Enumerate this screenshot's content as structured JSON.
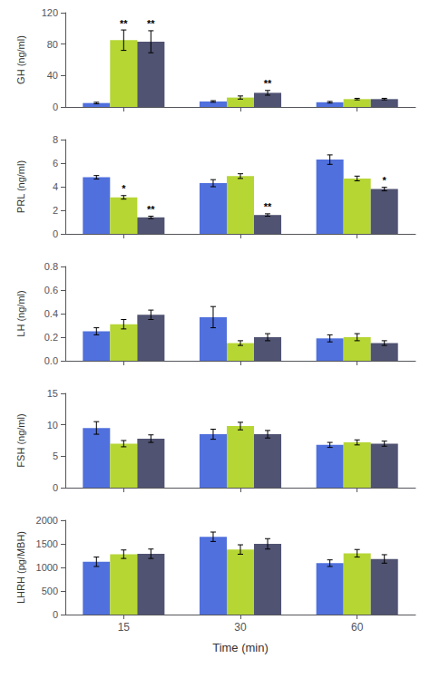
{
  "chart_data": [
    {
      "type": "bar",
      "ylabel": "GH (ng/ml)",
      "categories": [
        null,
        null,
        null
      ],
      "ylim": [
        0,
        120
      ],
      "yticks": [
        0,
        40,
        80,
        120
      ],
      "grid": false,
      "series": [
        {
          "values": [
            5,
            7,
            6
          ],
          "errors": [
            1,
            1,
            1
          ]
        },
        {
          "values": [
            85,
            12,
            10
          ],
          "errors": [
            13,
            2,
            1
          ],
          "annotations": [
            "**",
            null,
            null
          ]
        },
        {
          "values": [
            83,
            18,
            10
          ],
          "errors": [
            14,
            3,
            1
          ],
          "annotations": [
            "**",
            "**",
            null
          ]
        }
      ]
    },
    {
      "type": "bar",
      "ylabel": "PRL (ng/ml)",
      "categories": [
        null,
        null,
        null
      ],
      "ylim": [
        0,
        8
      ],
      "yticks": [
        0,
        2,
        4,
        6,
        8
      ],
      "grid": false,
      "series": [
        {
          "values": [
            4.8,
            4.3,
            6.3
          ],
          "errors": [
            0.15,
            0.3,
            0.4
          ]
        },
        {
          "values": [
            3.1,
            4.9,
            4.7
          ],
          "errors": [
            0.15,
            0.2,
            0.2
          ],
          "annotations": [
            "*",
            null,
            null
          ]
        },
        {
          "values": [
            1.4,
            1.6,
            3.8
          ],
          "errors": [
            0.1,
            0.1,
            0.15
          ],
          "annotations": [
            "**",
            "**",
            "*"
          ]
        }
      ]
    },
    {
      "type": "bar",
      "ylabel": "LH (ng/ml)",
      "categories": [
        null,
        null,
        null
      ],
      "ylim": [
        0.0,
        0.8
      ],
      "yticks": [
        {
          "value": 0,
          "label": "0.0"
        },
        0.2,
        0.4,
        0.6,
        0.8
      ],
      "grid": false,
      "series": [
        {
          "values": [
            0.25,
            0.37,
            0.19
          ],
          "errors": [
            0.03,
            0.09,
            0.03
          ]
        },
        {
          "values": [
            0.31,
            0.15,
            0.2
          ],
          "errors": [
            0.04,
            0.02,
            0.03
          ]
        },
        {
          "values": [
            0.39,
            0.2,
            0.15
          ],
          "errors": [
            0.04,
            0.03,
            0.02
          ]
        }
      ]
    },
    {
      "type": "bar",
      "ylabel": "FSH (ng/ml)",
      "categories": [
        null,
        null,
        null
      ],
      "ylim": [
        0,
        15
      ],
      "yticks": [
        0,
        5,
        10,
        15
      ],
      "grid": false,
      "series": [
        {
          "values": [
            9.5,
            8.5,
            6.8
          ],
          "errors": [
            1.0,
            0.8,
            0.4
          ]
        },
        {
          "values": [
            7.0,
            9.8,
            7.2
          ],
          "errors": [
            0.5,
            0.6,
            0.4
          ]
        },
        {
          "values": [
            7.8,
            8.5,
            7.0
          ],
          "errors": [
            0.6,
            0.6,
            0.4
          ]
        }
      ]
    },
    {
      "type": "bar",
      "ylabel": "LHRH (pg/MBH)",
      "xlabel": "Time (min)",
      "categories": [
        "15",
        "30",
        "60"
      ],
      "ylim": [
        0,
        2000
      ],
      "yticks": [
        0,
        500,
        1000,
        1500,
        2000
      ],
      "grid": false,
      "series": [
        {
          "values": [
            1120,
            1650,
            1090
          ],
          "errors": [
            100,
            100,
            70
          ]
        },
        {
          "values": [
            1280,
            1380,
            1300
          ],
          "errors": [
            90,
            100,
            80
          ]
        },
        {
          "values": [
            1290,
            1500,
            1180
          ],
          "errors": [
            100,
            110,
            90
          ]
        }
      ]
    }
  ]
}
